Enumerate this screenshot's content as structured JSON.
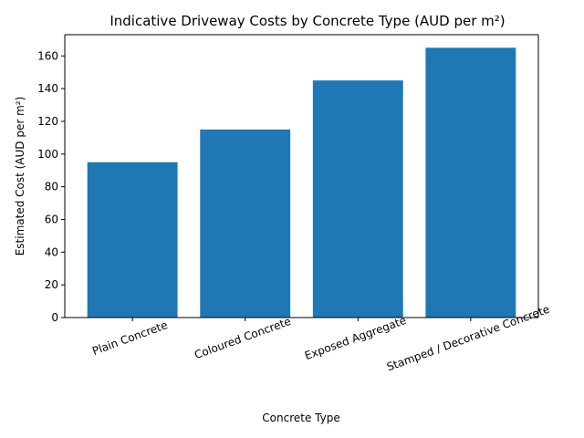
{
  "chart_data": {
    "type": "bar",
    "title": "Indicative Driveway Costs by Concrete Type (AUD per m²)",
    "xlabel": "Concrete Type",
    "ylabel": "Estimated Cost (AUD per m²)",
    "categories": [
      "Plain Concrete",
      "Coloured Concrete",
      "Exposed Aggregate",
      "Stamped / Decorative Concrete"
    ],
    "values": [
      95,
      115,
      145,
      165
    ],
    "ylim": [
      0,
      173
    ],
    "yticks": [
      0,
      20,
      40,
      60,
      80,
      100,
      120,
      140,
      160
    ],
    "bar_color": "#1f77b4",
    "grid": false,
    "legend": "none"
  }
}
